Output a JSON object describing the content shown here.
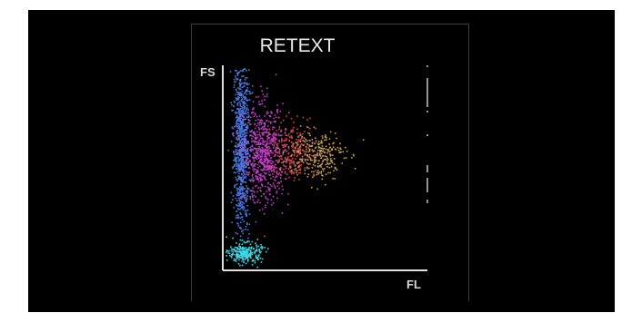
{
  "chart_data": {
    "type": "scatter",
    "title": "RETEXT",
    "xlabel": "FL",
    "ylabel": "FS",
    "grid": false,
    "legend": "none",
    "background": "#000000",
    "clusters": [
      {
        "color": "#4a78e0",
        "description_color": "blue",
        "center": [
          0.08,
          0.62
        ],
        "spread": [
          0.02,
          0.22
        ],
        "count": 900
      },
      {
        "color": "#c040c8",
        "description_color": "magenta",
        "center": [
          0.19,
          0.57
        ],
        "spread": [
          0.05,
          0.12
        ],
        "count": 650
      },
      {
        "color": "#d04050",
        "description_color": "red",
        "center": [
          0.33,
          0.58
        ],
        "spread": [
          0.06,
          0.07
        ],
        "count": 300
      },
      {
        "color": "#c8a050",
        "description_color": "gold",
        "center": [
          0.45,
          0.57
        ],
        "spread": [
          0.07,
          0.06
        ],
        "count": 260
      },
      {
        "color": "#40d8e0",
        "description_color": "cyan",
        "center": [
          0.1,
          0.08
        ],
        "spread": [
          0.04,
          0.025
        ],
        "count": 260
      }
    ],
    "xlim": [
      0,
      1
    ],
    "ylim": [
      0,
      1
    ]
  }
}
